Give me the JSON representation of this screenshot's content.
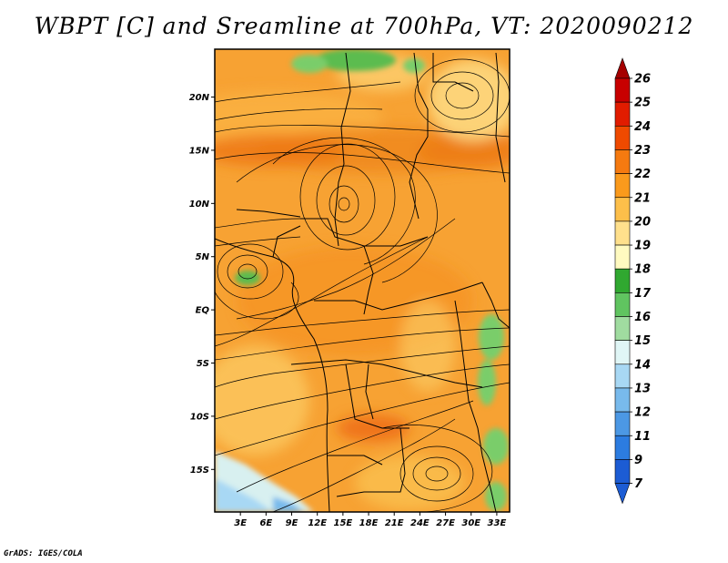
{
  "title": "WBPT [C] and Sreamline at 700hPa, VT: 2020090212",
  "credit": "GrADS: IGES/COLA",
  "map": {
    "variable": "Wet-bulb potential temperature",
    "units": "C",
    "level": "700hPa",
    "valid_time": "2020090212",
    "lat_ticks": [
      {
        "value": 20,
        "label": "20N"
      },
      {
        "value": 15,
        "label": "15N"
      },
      {
        "value": 10,
        "label": "10N"
      },
      {
        "value": 5,
        "label": "5N"
      },
      {
        "value": 0,
        "label": "EQ"
      },
      {
        "value": -5,
        "label": "5S"
      },
      {
        "value": -10,
        "label": "10S"
      },
      {
        "value": -15,
        "label": "15S"
      }
    ],
    "lon_ticks": [
      {
        "value": 3,
        "label": "3E"
      },
      {
        "value": 6,
        "label": "6E"
      },
      {
        "value": 9,
        "label": "9E"
      },
      {
        "value": 12,
        "label": "12E"
      },
      {
        "value": 15,
        "label": "15E"
      },
      {
        "value": 18,
        "label": "18E"
      },
      {
        "value": 21,
        "label": "21E"
      },
      {
        "value": 24,
        "label": "24E"
      },
      {
        "value": 27,
        "label": "27E"
      },
      {
        "value": 30,
        "label": "30E"
      },
      {
        "value": 33,
        "label": "33E"
      }
    ],
    "lat_range": [
      -19,
      24.5
    ],
    "lon_range": [
      0,
      34.5
    ]
  },
  "colorbar": {
    "levels": [
      {
        "label": "26",
        "color": "#a50000"
      },
      {
        "label": "25",
        "color": "#c80000"
      },
      {
        "label": "24",
        "color": "#e11c00"
      },
      {
        "label": "23",
        "color": "#ef4a00"
      },
      {
        "label": "22",
        "color": "#f57a10"
      },
      {
        "label": "21",
        "color": "#fa9a1c"
      },
      {
        "label": "20",
        "color": "#fdbf4a"
      },
      {
        "label": "19",
        "color": "#ffe08c"
      },
      {
        "label": "18",
        "color": "#fffac0"
      },
      {
        "label": "17",
        "color": "#30a830"
      },
      {
        "label": "16",
        "color": "#60c460"
      },
      {
        "label": "15",
        "color": "#a0dca0"
      },
      {
        "label": "14",
        "color": "#e0f6f6"
      },
      {
        "label": "13",
        "color": "#a8d8f4"
      },
      {
        "label": "12",
        "color": "#78baec"
      },
      {
        "label": "11",
        "color": "#4c98e4"
      },
      {
        "label": "9",
        "color": "#2c7ce0"
      },
      {
        "label": "7",
        "color": "#1c5cd4"
      }
    ]
  },
  "features": {
    "circulations": [
      {
        "name": "cyclonic-vortex-central",
        "lon": 15,
        "lat": 10
      },
      {
        "name": "vortex-west-coast",
        "lon": 3.5,
        "lat": 2.5
      },
      {
        "name": "anticyclone-northeast",
        "lon": 29,
        "lat": 21
      },
      {
        "name": "anticyclone-southeast",
        "lon": 25,
        "lat": -16
      }
    ]
  }
}
